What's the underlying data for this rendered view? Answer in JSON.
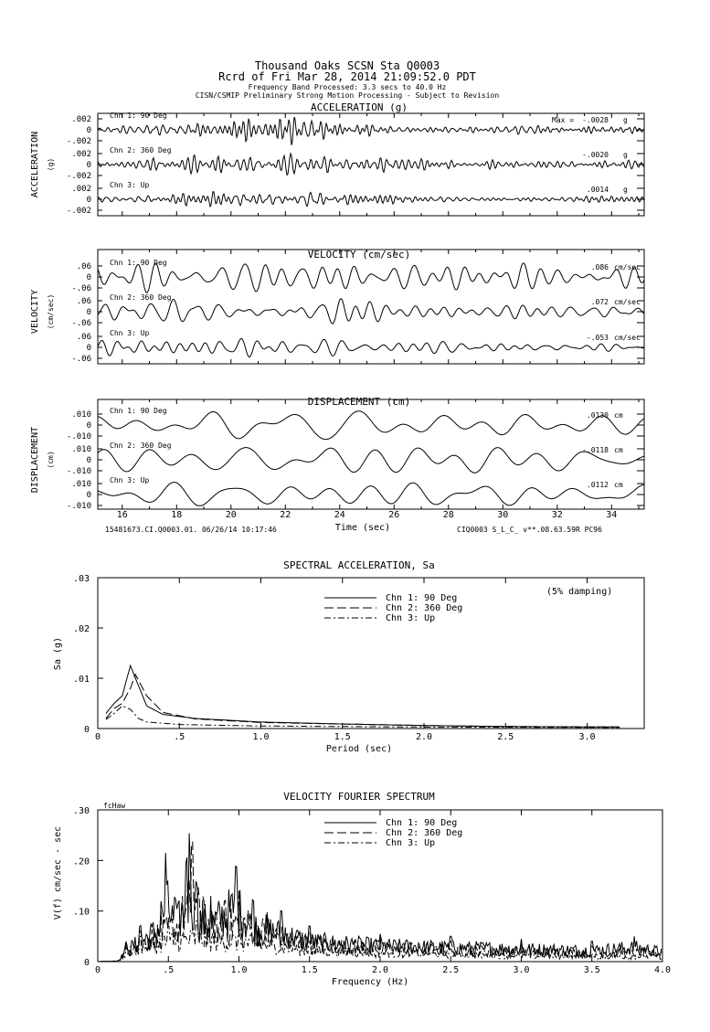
{
  "header": {
    "title1": "Thousand Oaks    SCSN Sta Q0003",
    "title2": "Rcrd of Fri Mar 28, 2014 21:09:52.0 PDT",
    "band": "Frequency Band Processed: 3.3 secs to 40.0 Hz",
    "disclaimer": "CISN/CSMIP Preliminary Strong Motion Processing - Subject to Revision"
  },
  "time_panels": [
    {
      "title": "ACCELERATION (g)",
      "ylabel": "ACCELERATION",
      "yunit": "(g)",
      "channels": [
        {
          "label": "Chn 1: 90 Deg",
          "max_prefix": "Max =",
          "max": "-.0028",
          "unit": "g",
          "ticks": [
            ".002",
            "0",
            "-.002"
          ]
        },
        {
          "label": "Chn 2: 360 Deg",
          "max": "-.0020",
          "unit": "g",
          "ticks": [
            ".002",
            "0",
            "-.002"
          ]
        },
        {
          "label": "Chn 3: Up",
          "max": ".0014",
          "unit": "g",
          "ticks": [
            ".002",
            "0",
            "-.002"
          ]
        }
      ]
    },
    {
      "title": "VELOCITY (cm/sec)",
      "ylabel": "VELOCITY",
      "yunit": "(cm/sec)",
      "channels": [
        {
          "label": "Chn 1: 90 Deg",
          "max": ".086",
          "unit": "cm/sec",
          "ticks": [
            ".06",
            "0",
            "-.06"
          ]
        },
        {
          "label": "Chn 2: 360 Deg",
          "max": ".072",
          "unit": "cm/sec",
          "ticks": [
            ".06",
            "0",
            "-.06"
          ]
        },
        {
          "label": "Chn 3: Up",
          "max": "-.053",
          "unit": "cm/sec",
          "ticks": [
            ".06",
            "0",
            "-.06"
          ]
        }
      ]
    },
    {
      "title": "DISPLACEMENT (cm)",
      "ylabel": "DISPLACEMENT",
      "yunit": "(cm)",
      "channels": [
        {
          "label": "Chn 1: 90 Deg",
          "max": ".0130",
          "unit": "cm",
          "ticks": [
            ".010",
            "0",
            "-.010"
          ]
        },
        {
          "label": "Chn 2: 360 Deg",
          "max": "-.0118",
          "unit": "cm",
          "ticks": [
            ".010",
            "0",
            "-.010"
          ]
        },
        {
          "label": "Chn 3: Up",
          "max": ".0112",
          "unit": "cm",
          "ticks": [
            ".010",
            "0",
            "-.010"
          ]
        }
      ]
    }
  ],
  "time_axis": {
    "label": "Time (sec)",
    "ticks": [
      "16",
      "18",
      "20",
      "22",
      "24",
      "26",
      "28",
      "30",
      "32",
      "34"
    ],
    "range": [
      15.1,
      35.2
    ],
    "footer_left": "15481673.CI.Q0003.01. 06/26/14 10:17:46",
    "footer_right": "CIQ0003  S_L_C_  v**.08.63.59R PC96"
  },
  "chart_data": [
    {
      "type": "line",
      "title": "SPECTRAL ACCELERATION, Sa",
      "annotation": "(5% damping)",
      "xlabel": "Period (sec)",
      "ylabel": "Sa (g)",
      "xlim": [
        0,
        3.35
      ],
      "ylim": [
        0,
        0.03
      ],
      "xticks": [
        "0",
        ".5",
        "1.0",
        "1.5",
        "2.0",
        "2.5",
        "3.0"
      ],
      "yticks": [
        ".03",
        ".02",
        ".01",
        "0"
      ],
      "legend": "top-center",
      "series": [
        {
          "name": "Chn 1: 90 Deg",
          "style": "solid",
          "points": [
            [
              0.05,
              0.003
            ],
            [
              0.1,
              0.005
            ],
            [
              0.15,
              0.0065
            ],
            [
              0.2,
              0.0125
            ],
            [
              0.25,
              0.0085
            ],
            [
              0.3,
              0.0045
            ],
            [
              0.4,
              0.0028
            ],
            [
              0.6,
              0.002
            ],
            [
              1.0,
              0.0013
            ],
            [
              1.5,
              0.0009
            ],
            [
              2.0,
              0.0006
            ],
            [
              2.5,
              0.0004
            ],
            [
              3.2,
              0.0003
            ]
          ]
        },
        {
          "name": "Chn 2: 360 Deg",
          "style": "dashed",
          "points": [
            [
              0.05,
              0.002
            ],
            [
              0.1,
              0.004
            ],
            [
              0.15,
              0.005
            ],
            [
              0.2,
              0.008
            ],
            [
              0.23,
              0.0108
            ],
            [
              0.3,
              0.0065
            ],
            [
              0.4,
              0.0032
            ],
            [
              0.6,
              0.0019
            ],
            [
              1.0,
              0.0012
            ],
            [
              1.5,
              0.0009
            ],
            [
              2.0,
              0.0006
            ],
            [
              2.5,
              0.0004
            ],
            [
              3.2,
              0.0003
            ]
          ]
        },
        {
          "name": "Chn 3: Up",
          "style": "dashdot",
          "points": [
            [
              0.05,
              0.0018
            ],
            [
              0.1,
              0.003
            ],
            [
              0.15,
              0.0045
            ],
            [
              0.2,
              0.0038
            ],
            [
              0.25,
              0.002
            ],
            [
              0.3,
              0.0013
            ],
            [
              0.5,
              0.0008
            ],
            [
              1.0,
              0.0005
            ],
            [
              2.0,
              0.0003
            ],
            [
              3.2,
              0.0002
            ]
          ]
        }
      ]
    },
    {
      "type": "line",
      "title": "VELOCITY FOURIER SPECTRUM",
      "corner_label": "fcHaw",
      "xlabel": "Frequency (Hz)",
      "ylabel": "V(f)  cm/sec - sec",
      "xlim": [
        0,
        4.0
      ],
      "ylim": [
        0,
        0.3
      ],
      "xticks": [
        "0",
        ".5",
        "1.0",
        "1.5",
        "2.0",
        "2.5",
        "3.0",
        "3.5",
        "4.0"
      ],
      "yticks": [
        ".30",
        ".20",
        ".10",
        "0"
      ],
      "legend": "top-center",
      "series": [
        {
          "name": "Chn 1: 90 Deg",
          "style": "solid",
          "envelope": [
            [
              0,
              0
            ],
            [
              0.15,
              0.002
            ],
            [
              0.2,
              0.04
            ],
            [
              0.3,
              0.07
            ],
            [
              0.45,
              0.12
            ],
            [
              0.48,
              0.215
            ],
            [
              0.55,
              0.12
            ],
            [
              0.63,
              0.2
            ],
            [
              0.65,
              0.26
            ],
            [
              0.7,
              0.15
            ],
            [
              0.8,
              0.13
            ],
            [
              0.98,
              0.19
            ],
            [
              1.1,
              0.12
            ],
            [
              1.3,
              0.1
            ],
            [
              1.5,
              0.07
            ],
            [
              2.0,
              0.055
            ],
            [
              2.5,
              0.05
            ],
            [
              3.0,
              0.045
            ],
            [
              3.5,
              0.04
            ],
            [
              3.8,
              0.05
            ],
            [
              4.0,
              0.035
            ]
          ]
        },
        {
          "name": "Chn 2: 360 Deg",
          "style": "dashed",
          "envelope": [
            [
              0,
              0
            ],
            [
              0.15,
              0.002
            ],
            [
              0.2,
              0.035
            ],
            [
              0.3,
              0.06
            ],
            [
              0.45,
              0.1
            ],
            [
              0.6,
              0.13
            ],
            [
              0.67,
              0.24
            ],
            [
              0.75,
              0.12
            ],
            [
              0.9,
              0.12
            ],
            [
              1.0,
              0.14
            ],
            [
              1.2,
              0.1
            ],
            [
              1.5,
              0.06
            ],
            [
              2.0,
              0.05
            ],
            [
              2.5,
              0.04
            ],
            [
              3.0,
              0.035
            ],
            [
              3.5,
              0.03
            ],
            [
              4.0,
              0.03
            ]
          ]
        },
        {
          "name": "Chn 3: Up",
          "style": "dashdot",
          "envelope": [
            [
              0,
              0
            ],
            [
              0.15,
              0.002
            ],
            [
              0.2,
              0.03
            ],
            [
              0.3,
              0.05
            ],
            [
              0.5,
              0.07
            ],
            [
              0.7,
              0.08
            ],
            [
              1.0,
              0.07
            ],
            [
              1.5,
              0.04
            ],
            [
              2.0,
              0.03
            ],
            [
              2.5,
              0.025
            ],
            [
              3.0,
              0.02
            ],
            [
              4.0,
              0.018
            ]
          ]
        }
      ]
    }
  ]
}
